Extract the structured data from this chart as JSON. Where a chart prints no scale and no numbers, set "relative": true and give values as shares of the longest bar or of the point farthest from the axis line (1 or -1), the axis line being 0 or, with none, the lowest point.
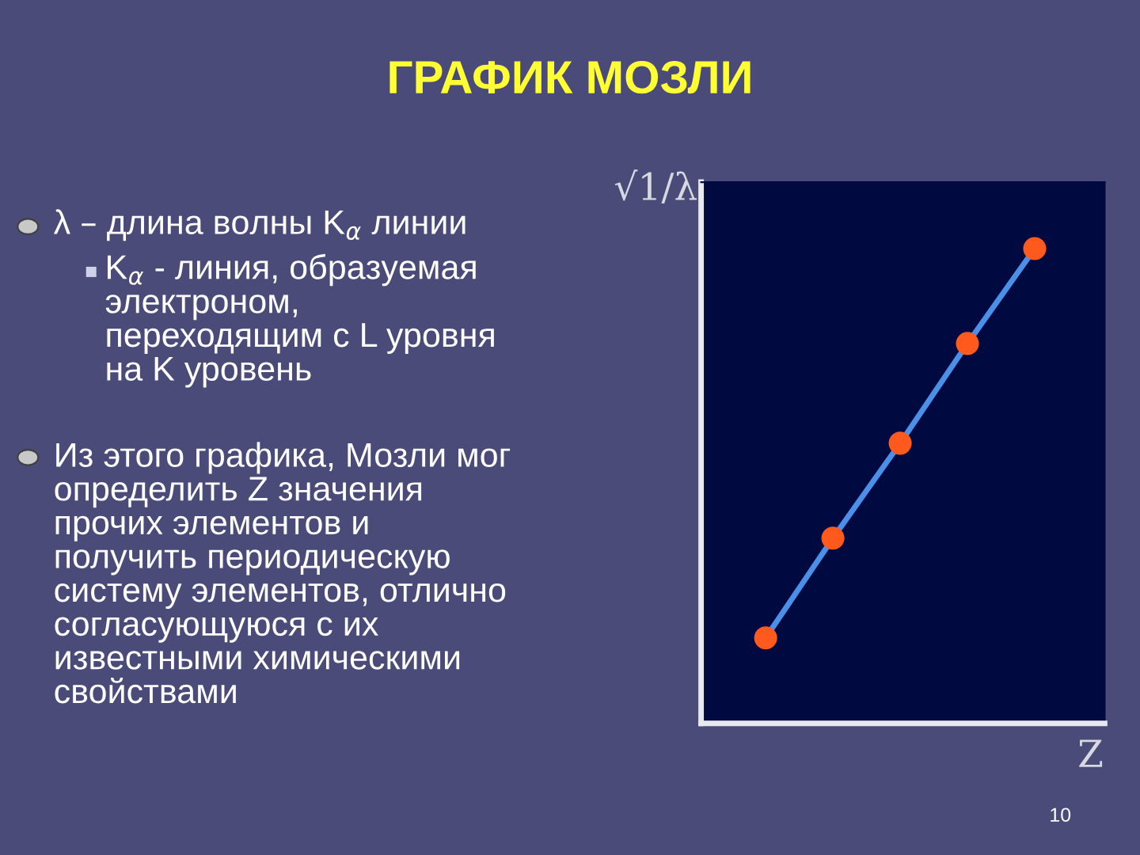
{
  "chart_data": {
    "type": "line",
    "title": "ГРАФИК МОЗЛИ",
    "xlabel": "Z",
    "ylabel": "√1/λ",
    "categories": [
      null,
      null,
      null,
      null,
      null
    ],
    "relative": true,
    "series": [
      {
        "color": "#4a90e8",
        "colors": [
          "#ff5a1e",
          "#ff5a1e",
          "#ff5a1e",
          "#ff5a1e",
          "#ff5a1e"
        ],
        "values": [
          0.18,
          0.39,
          0.59,
          0.8,
          1.0
        ]
      }
    ],
    "marker": "circle",
    "grid": false,
    "legend": false,
    "annotations": [
      "λ – длина волны K$_{α}$ линии",
      "K$_{α}$ - линия, образуемая\nэлектроном,\nпереходящим с L уровня\nна K уровень",
      "Из этого графика, Мозли мог\nопределить Z значения\nпрочих элементов и\nполучить периодическую\nсистему элементов, отлично\nсогласующуюся с их\nизвестными химическими\nсвойствами",
      "10"
    ]
  }
}
